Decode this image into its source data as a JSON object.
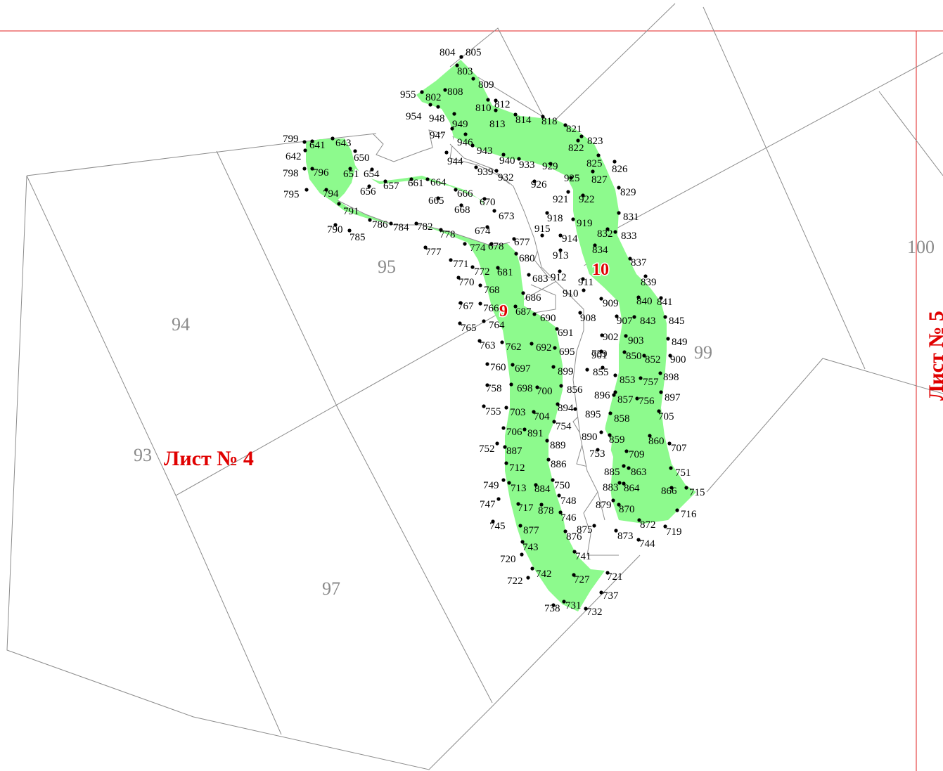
{
  "map": {
    "sheet_left": "Лист № 4",
    "sheet_right": "Лист № 5",
    "plots": [
      "93",
      "94",
      "95",
      "97",
      "99",
      "100"
    ],
    "areas": [
      "9",
      "10"
    ]
  },
  "points": [
    "804",
    "805",
    "803",
    "809",
    "955",
    "802",
    "808",
    "810",
    "812",
    "954",
    "948",
    "949",
    "813",
    "814",
    "818",
    "947",
    "946",
    "821",
    "943",
    "823",
    "822",
    "799",
    "641",
    "643",
    "650",
    "825",
    "826",
    "642",
    "944",
    "940",
    "933",
    "929",
    "796",
    "798",
    "651",
    "654",
    "939",
    "932",
    "827",
    "926",
    "656",
    "657",
    "661",
    "664",
    "925",
    "829",
    "795",
    "794",
    "666",
    "921",
    "922",
    "665",
    "670",
    "791",
    "668",
    "673",
    "918",
    "831",
    "919",
    "786",
    "784",
    "782",
    "832",
    "833",
    "790",
    "785",
    "778",
    "674",
    "915",
    "914",
    "677",
    "834",
    "777",
    "774",
    "678",
    "913",
    "680",
    "837",
    "771",
    "772",
    "681",
    "912",
    "911",
    "683",
    "839",
    "770",
    "768",
    "910",
    "686",
    "840",
    "841",
    "767",
    "766",
    "909",
    "687",
    "690",
    "907",
    "843",
    "845",
    "765",
    "764",
    "908",
    "691",
    "902",
    "903",
    "763",
    "762",
    "692",
    "849",
    "695",
    "901",
    "850",
    "852",
    "900",
    "759",
    "760",
    "697",
    "899",
    "855",
    "898",
    "853",
    "757",
    "758",
    "698",
    "700",
    "856",
    "897",
    "896",
    "857",
    "756",
    "755",
    "703",
    "704",
    "894",
    "895",
    "858",
    "705",
    "754",
    "706",
    "891",
    "890",
    "859",
    "860",
    "707",
    "889",
    "753",
    "752",
    "887",
    "709",
    "886",
    "885",
    "863",
    "751",
    "712",
    "750",
    "749",
    "713",
    "884",
    "883",
    "864",
    "866",
    "715",
    "748",
    "747",
    "717",
    "878",
    "879",
    "870",
    "716",
    "746",
    "745",
    "877",
    "875",
    "872",
    "719",
    "876",
    "873",
    "744",
    "743",
    "720",
    "741",
    "742",
    "722",
    "721",
    "727",
    "737",
    "738",
    "731",
    "732"
  ]
}
